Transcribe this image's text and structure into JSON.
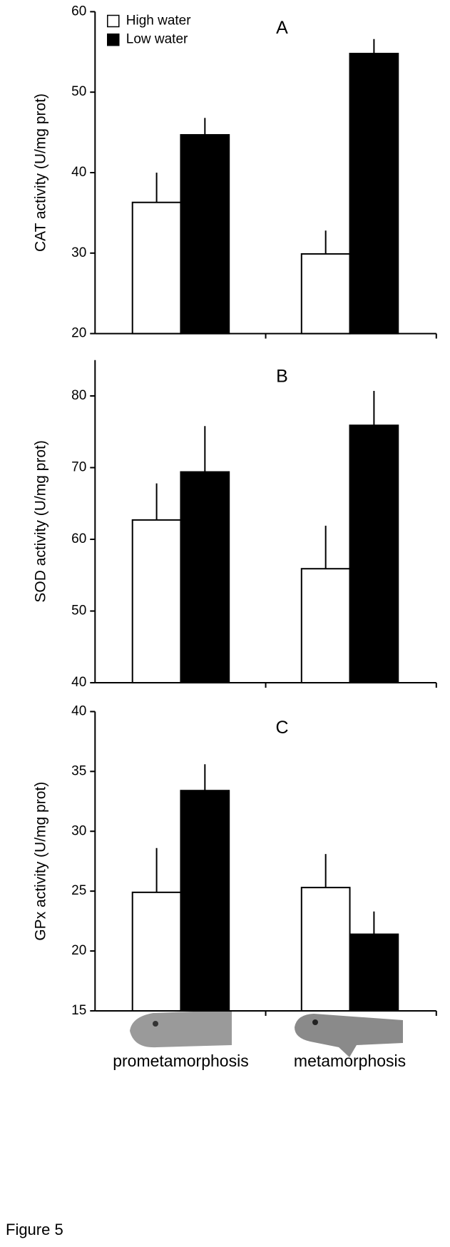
{
  "chart_data": [
    {
      "type": "bar",
      "panel_label": "A",
      "y_label": "CAT activity (U/mg prot)",
      "ylim": [
        20,
        60
      ],
      "yticks": [
        20,
        30,
        40,
        50,
        60
      ],
      "series": [
        {
          "name": "High water",
          "color": "#ffffff",
          "values": [
            36.3,
            29.9
          ],
          "errors": [
            3.7,
            2.9
          ]
        },
        {
          "name": "Low water",
          "color": "#000000",
          "values": [
            44.7,
            54.8
          ],
          "errors": [
            2.1,
            1.8
          ]
        }
      ]
    },
    {
      "type": "bar",
      "panel_label": "B",
      "y_label": "SOD activity (U/mg prot)",
      "ylim": [
        40,
        85
      ],
      "yticks": [
        40,
        50,
        60,
        70,
        80
      ],
      "series": [
        {
          "color": "#ffffff",
          "values": [
            62.7,
            55.9
          ],
          "errors": [
            5.1,
            6.0
          ]
        },
        {
          "color": "#000000",
          "values": [
            69.4,
            75.9
          ],
          "errors": [
            6.4,
            4.8
          ]
        }
      ]
    },
    {
      "type": "bar",
      "panel_label": "C",
      "y_label": "GPx activity (U/mg prot)",
      "categories": [
        "prometamorphosis",
        "metamorphosis"
      ],
      "ylim": [
        15,
        40
      ],
      "yticks": [
        15,
        20,
        25,
        30,
        35,
        40
      ],
      "series": [
        {
          "color": "#ffffff",
          "values": [
            24.9,
            25.3
          ],
          "errors": [
            3.7,
            2.8
          ]
        },
        {
          "color": "#000000",
          "values": [
            33.4,
            21.4
          ],
          "errors": [
            2.2,
            1.9
          ]
        }
      ]
    }
  ],
  "figure_label": "Figure 5"
}
